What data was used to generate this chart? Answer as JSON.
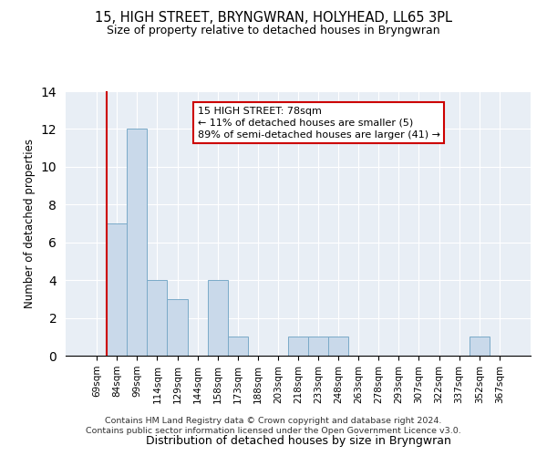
{
  "title": "15, HIGH STREET, BRYNGWRAN, HOLYHEAD, LL65 3PL",
  "subtitle": "Size of property relative to detached houses in Bryngwran",
  "xlabel": "Distribution of detached houses by size in Bryngwran",
  "ylabel": "Number of detached properties",
  "categories": [
    "69sqm",
    "84sqm",
    "99sqm",
    "114sqm",
    "129sqm",
    "144sqm",
    "158sqm",
    "173sqm",
    "188sqm",
    "203sqm",
    "218sqm",
    "233sqm",
    "248sqm",
    "263sqm",
    "278sqm",
    "293sqm",
    "307sqm",
    "322sqm",
    "337sqm",
    "352sqm",
    "367sqm"
  ],
  "values": [
    0,
    7,
    12,
    4,
    3,
    0,
    4,
    1,
    0,
    0,
    1,
    1,
    1,
    0,
    0,
    0,
    0,
    0,
    0,
    1,
    0
  ],
  "bar_color": "#c9d9ea",
  "bar_edge_color": "#7aaac8",
  "highlight_color": "#cc0000",
  "annotation_text": "15 HIGH STREET: 78sqm\n← 11% of detached houses are smaller (5)\n89% of semi-detached houses are larger (41) →",
  "annotation_box_color": "#ffffff",
  "annotation_box_edge": "#cc0000",
  "ylim": [
    0,
    14
  ],
  "yticks": [
    0,
    2,
    4,
    6,
    8,
    10,
    12,
    14
  ],
  "background_color": "#e8eef5",
  "footer_line1": "Contains HM Land Registry data © Crown copyright and database right 2024.",
  "footer_line2": "Contains public sector information licensed under the Open Government Licence v3.0."
}
